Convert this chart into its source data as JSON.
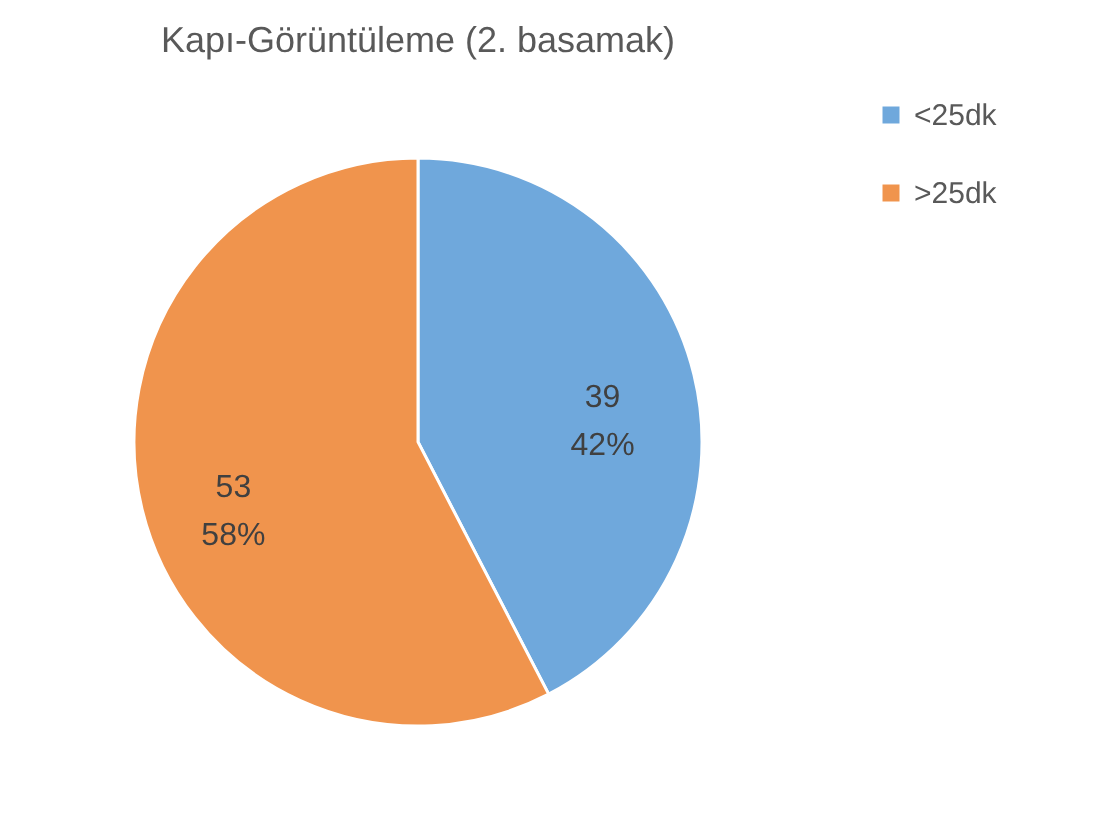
{
  "chart_data": {
    "type": "pie",
    "title": "Kapı-Görüntüleme (2. basamak)",
    "categories": [
      "<25dk",
      ">25dk"
    ],
    "values": [
      39,
      53
    ],
    "colors": [
      "#6fa8dc",
      "#f0944d"
    ],
    "value_labels": [
      "39\n42%",
      "53\n58%"
    ],
    "legend": "right"
  }
}
